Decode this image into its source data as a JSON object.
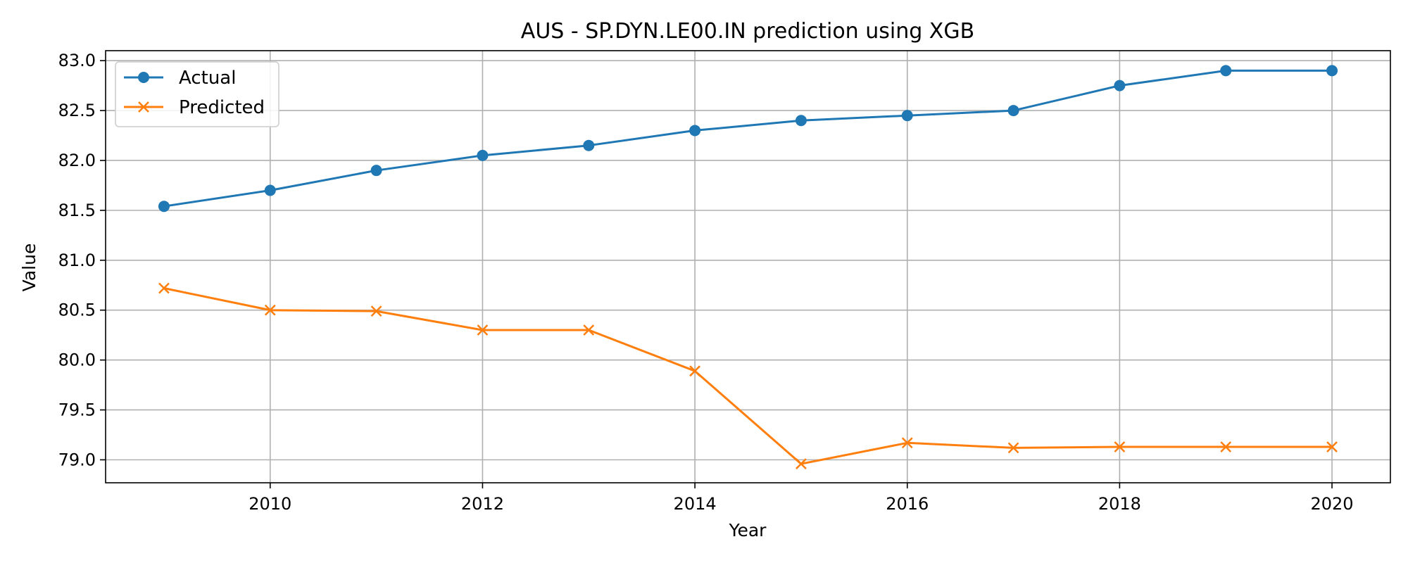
{
  "chart_data": {
    "type": "line",
    "title": "AUS - SP.DYN.LE00.IN prediction using XGB",
    "xlabel": "Year",
    "ylabel": "Value",
    "x": [
      2009,
      2010,
      2011,
      2012,
      2013,
      2014,
      2015,
      2016,
      2017,
      2018,
      2019,
      2020
    ],
    "xlim": [
      2008.45,
      2020.55
    ],
    "ylim": [
      78.77,
      83.1
    ],
    "xticks": [
      2010,
      2012,
      2014,
      2016,
      2018,
      2020
    ],
    "yticks": [
      79.0,
      79.5,
      80.0,
      80.5,
      81.0,
      81.5,
      82.0,
      82.5,
      83.0
    ],
    "grid": true,
    "legend_position": "top-left",
    "series": [
      {
        "name": "Actual",
        "color": "#1f77b4",
        "marker": "circle",
        "values": [
          81.54,
          81.7,
          81.9,
          82.05,
          82.15,
          82.3,
          82.4,
          82.45,
          82.5,
          82.75,
          82.9,
          82.9
        ]
      },
      {
        "name": "Predicted",
        "color": "#ff7f0e",
        "marker": "x",
        "values": [
          80.72,
          80.5,
          80.49,
          80.3,
          80.3,
          79.89,
          78.96,
          79.17,
          79.12,
          79.13,
          79.13,
          79.13
        ]
      }
    ]
  }
}
